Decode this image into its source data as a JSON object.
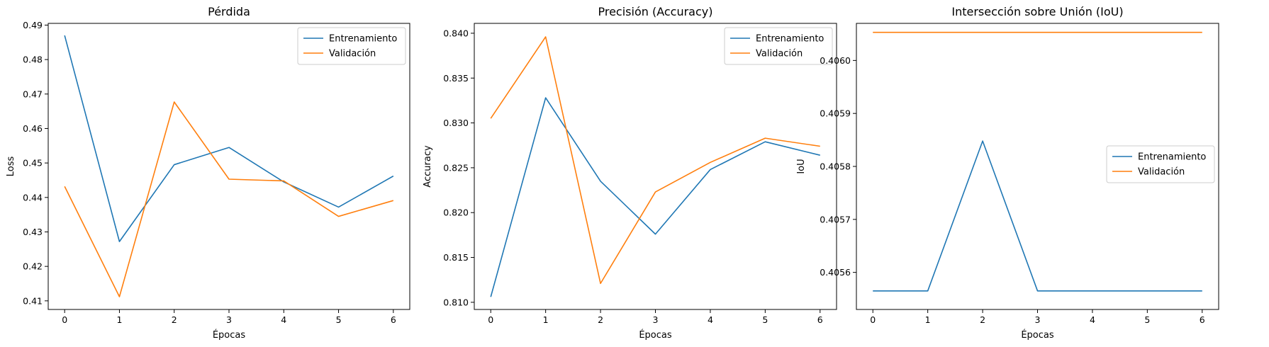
{
  "chart_data": [
    {
      "type": "line",
      "title": "Pérdida",
      "xlabel": "Épocas",
      "ylabel": "Loss",
      "x": [
        0,
        1,
        2,
        3,
        4,
        5,
        6
      ],
      "xlim": [
        -0.3,
        6.3
      ],
      "ylim": [
        0.4075,
        0.4905
      ],
      "xticks": [
        "0",
        "1",
        "2",
        "3",
        "4",
        "5",
        "6"
      ],
      "yticks": [
        "0.41",
        "0.42",
        "0.43",
        "0.44",
        "0.45",
        "0.46",
        "0.47",
        "0.48",
        "0.49"
      ],
      "grid": false,
      "legend": "top-right",
      "series": [
        {
          "name": "Entrenamiento",
          "color": "#1f77b4",
          "values": [
            0.487,
            0.4272,
            0.4495,
            0.4545,
            0.4445,
            0.4372,
            0.4462
          ]
        },
        {
          "name": "Validación",
          "color": "#ff7f0e",
          "values": [
            0.4432,
            0.4112,
            0.4677,
            0.4453,
            0.4448,
            0.4345,
            0.4391
          ]
        }
      ]
    },
    {
      "type": "line",
      "title": "Precisión (Accuracy)",
      "xlabel": "Épocas",
      "ylabel": "Accuracy",
      "x": [
        0,
        1,
        2,
        3,
        4,
        5,
        6
      ],
      "xlim": [
        -0.3,
        6.3
      ],
      "ylim": [
        0.8092,
        0.8411
      ],
      "xticks": [
        "0",
        "1",
        "2",
        "3",
        "4",
        "5",
        "6"
      ],
      "yticks": [
        "0.810",
        "0.815",
        "0.820",
        "0.825",
        "0.830",
        "0.835",
        "0.840"
      ],
      "grid": false,
      "legend": "top-right",
      "series": [
        {
          "name": "Entrenamiento",
          "color": "#1f77b4",
          "values": [
            0.8106,
            0.8328,
            0.8235,
            0.8176,
            0.8248,
            0.8279,
            0.8264
          ]
        },
        {
          "name": "Validación",
          "color": "#ff7f0e",
          "values": [
            0.8305,
            0.8396,
            0.8121,
            0.8223,
            0.8256,
            0.8283,
            0.8274
          ]
        }
      ]
    },
    {
      "type": "line",
      "title": "Intersección sobre Unión (IoU)",
      "xlabel": "Épocas",
      "ylabel": "IoU",
      "x": [
        0,
        1,
        2,
        3,
        4,
        5,
        6
      ],
      "xlim": [
        -0.3,
        6.3
      ],
      "ylim": [
        0.40553,
        0.40607
      ],
      "xticks": [
        "0",
        "1",
        "2",
        "3",
        "4",
        "5",
        "6"
      ],
      "yticks": [
        "0.4056",
        "0.4057",
        "0.4058",
        "0.4059",
        "0.4060"
      ],
      "grid": false,
      "legend": "center-right",
      "series": [
        {
          "name": "Entrenamiento",
          "color": "#1f77b4",
          "values": [
            0.405565,
            0.405565,
            0.405848,
            0.405565,
            0.405565,
            0.405565,
            0.405565
          ]
        },
        {
          "name": "Validación",
          "color": "#ff7f0e",
          "values": [
            0.406053,
            0.406053,
            0.406053,
            0.406053,
            0.406053,
            0.406053,
            0.406053
          ]
        }
      ]
    }
  ]
}
